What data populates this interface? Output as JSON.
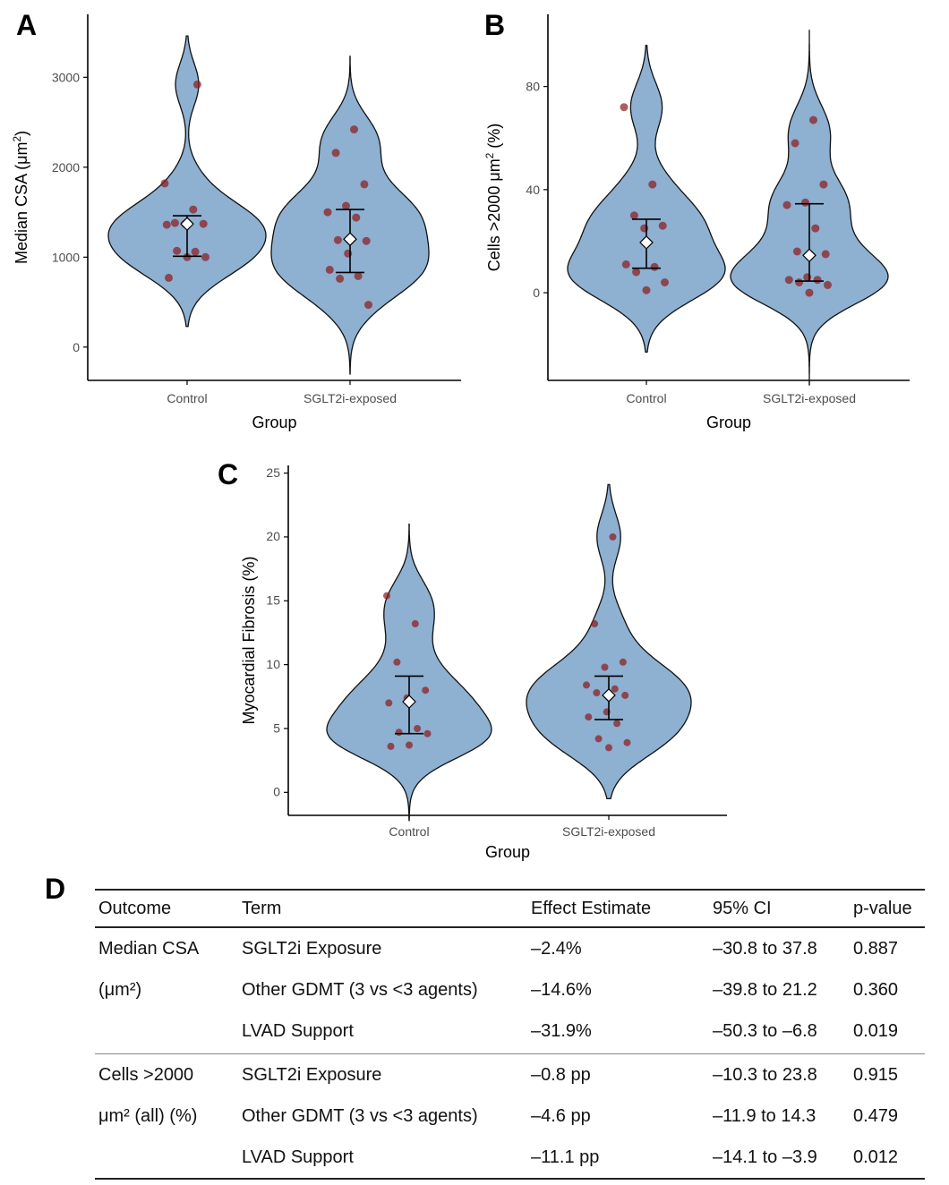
{
  "panels": {
    "a": {
      "letter": "A"
    },
    "b": {
      "letter": "B"
    },
    "c": {
      "letter": "C"
    },
    "d": {
      "letter": "D"
    }
  },
  "colors": {
    "violin_fill": "#8eb0d1",
    "violin_stroke": "#111111",
    "point": "#8b1a1a",
    "axis": "#000000"
  },
  "chart_data": [
    {
      "id": "A",
      "type": "violin",
      "xlabel": "Group",
      "ylabel_prefix": "Median CSA (μm",
      "ylabel_sup": "2",
      "ylabel_suffix": ")",
      "categories": [
        "Control",
        "SGLT2i-exposed"
      ],
      "yticks": [
        0,
        1000,
        2000,
        3000
      ],
      "ylim": [
        -370,
        3700
      ],
      "violin_range": [
        [
          230,
          3460
        ],
        [
          -300,
          3240
        ]
      ],
      "points": [
        [
          1820,
          1530,
          1380,
          1370,
          1370,
          1360,
          1060,
          1070,
          1000,
          1000,
          770,
          2920
        ],
        [
          2420,
          2160,
          1810,
          1570,
          1500,
          1440,
          1190,
          1180,
          1040,
          860,
          790,
          760,
          470
        ]
      ],
      "means": [
        1370,
        1200
      ],
      "ci": [
        [
          1010,
          1460
        ],
        [
          830,
          1530
        ]
      ]
    },
    {
      "id": "B",
      "type": "violin",
      "xlabel": "Group",
      "ylabel_prefix": "Cells >2000 μm",
      "ylabel_sup": "2",
      "ylabel_suffix": " (%)",
      "categories": [
        "Control",
        "SGLT2i-exposed"
      ],
      "yticks": [
        0,
        40,
        80
      ],
      "ylim": [
        -34,
        108
      ],
      "violin_range": [
        [
          -23,
          96
        ],
        [
          -36,
          102
        ]
      ],
      "points": [
        [
          72,
          42,
          30,
          26,
          25,
          11,
          10,
          8,
          4,
          1
        ],
        [
          67,
          58,
          42,
          35,
          34,
          25,
          16,
          15,
          6,
          5,
          5,
          4,
          3,
          0
        ]
      ],
      "means": [
        19.5,
        14.5
      ],
      "ci": [
        [
          9.5,
          28.5
        ],
        [
          4.5,
          34.5
        ]
      ]
    },
    {
      "id": "C",
      "type": "violin",
      "xlabel": "Group",
      "ylabel": "Myocardial Fibrosis (%)",
      "categories": [
        "Control",
        "SGLT2i-exposed"
      ],
      "yticks": [
        0,
        5,
        10,
        15,
        20,
        25
      ],
      "ylim": [
        -1.8,
        25.6
      ],
      "violin_range": [
        [
          -2.2,
          21
        ],
        [
          -0.5,
          24.1
        ]
      ],
      "points": [
        [
          15.4,
          13.2,
          10.2,
          8.0,
          7.4,
          7.0,
          5.0,
          4.7,
          4.6,
          3.7,
          3.6
        ],
        [
          20.0,
          13.2,
          10.2,
          9.8,
          8.4,
          8.1,
          7.8,
          7.6,
          6.3,
          5.9,
          5.4,
          4.2,
          3.9,
          3.5
        ]
      ],
      "means": [
        7.1,
        7.6
      ],
      "ci": [
        [
          4.6,
          9.1
        ],
        [
          5.7,
          9.1
        ]
      ]
    }
  ],
  "table": {
    "headers": [
      "Outcome",
      "Term",
      "Effect Estimate",
      "95% CI",
      "p-value"
    ],
    "groups": [
      {
        "outcome": "Median CSA\n(μm²)",
        "rows": [
          {
            "term": "SGLT2i Exposure",
            "effect": "–2.4%",
            "ci": "–30.8 to 37.8",
            "p": "0.887"
          },
          {
            "term": "Other GDMT (3 vs <3 agents)",
            "effect": "–14.6%",
            "ci": "–39.8 to 21.2",
            "p": "0.360"
          },
          {
            "term": "LVAD Support",
            "effect": "–31.9%",
            "ci": "–50.3 to –6.8",
            "p": "0.019"
          }
        ]
      },
      {
        "outcome": "Cells >2000\nμm² (all) (%)",
        "rows": [
          {
            "term": "SGLT2i Exposure",
            "effect": "–0.8 pp",
            "ci": "–10.3 to 23.8",
            "p": "0.915"
          },
          {
            "term": "Other GDMT (3 vs <3 agents)",
            "effect": "–4.6 pp",
            "ci": "–11.9 to 14.3",
            "p": "0.479"
          },
          {
            "term": "LVAD Support",
            "effect": "–11.1 pp",
            "ci": "–14.1 to –3.9",
            "p": "0.012"
          }
        ]
      }
    ]
  }
}
